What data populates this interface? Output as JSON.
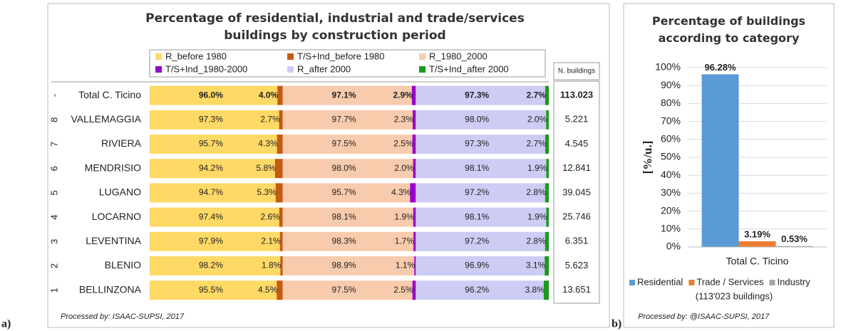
{
  "chart_data": [
    {
      "type": "stacked_bar",
      "orientation": "horizontal",
      "panel": "a)",
      "title": "Percentage of residential, industrial and trade/services buildings by construction period",
      "categories": [
        "Total C. Ticino",
        "VALLEMAGGIA",
        "RIVIERA",
        "MENDRISIO",
        "LUGANO",
        "LOCARNO",
        "LEVENTINA",
        "BLENIO",
        "BELLINZONA"
      ],
      "row_numbers": [
        "-",
        "8",
        "7",
        "6",
        "5",
        "4",
        "3",
        "2",
        "1"
      ],
      "series": [
        {
          "name": "R_before 1980",
          "color": "#ffd966",
          "values": [
            96.0,
            97.3,
            95.7,
            94.2,
            94.7,
            97.4,
            97.9,
            98.2,
            95.5
          ],
          "value_labels": [
            "96.0%",
            "97.3%",
            "95.7%",
            "94.2%",
            "94.7%",
            "97.4%",
            "97.9%",
            "98.2%",
            "95.5%"
          ]
        },
        {
          "name": "T/S+Ind_before 1980",
          "color": "#c55a11",
          "values": [
            4.0,
            2.7,
            4.3,
            5.8,
            5.3,
            2.6,
            2.1,
            1.8,
            4.5
          ],
          "value_labels": [
            "4.0%",
            "2.7%",
            "4.3%",
            "5.8%",
            "5.3%",
            "2.6%",
            "2.1%",
            "1.8%",
            "4.5%"
          ]
        },
        {
          "name": "R_1980_2000",
          "color": "#f8cbad",
          "values": [
            97.1,
            97.7,
            97.5,
            98.0,
            95.7,
            98.1,
            98.3,
            98.9,
            97.5
          ],
          "value_labels": [
            "97.1%",
            "97.7%",
            "97.5%",
            "98.0%",
            "95.7%",
            "98.1%",
            "98.3%",
            "98.9%",
            "97.5%"
          ]
        },
        {
          "name": "T/S+Ind_1980-2000",
          "color": "#9900cc",
          "values": [
            2.9,
            2.3,
            2.5,
            2.0,
            4.3,
            1.9,
            1.7,
            1.1,
            2.5
          ],
          "value_labels": [
            "2.9%",
            "2.3%",
            "2.5%",
            "2.0%",
            "4.3%",
            "1.9%",
            "1.7%",
            "1.1%",
            "2.5%"
          ]
        },
        {
          "name": "R_after 2000",
          "color": "#ccccf5",
          "values": [
            97.3,
            98.0,
            97.3,
            98.1,
            97.2,
            98.1,
            97.2,
            96.9,
            96.2
          ],
          "value_labels": [
            "97.3%",
            "98.0%",
            "97.3%",
            "98.1%",
            "97.2%",
            "98.1%",
            "97.2%",
            "96.9%",
            "96.2%"
          ]
        },
        {
          "name": "T/S+Ind_after 2000",
          "color": "#1a9a1a",
          "values": [
            2.7,
            2.0,
            2.7,
            1.9,
            2.8,
            1.9,
            2.8,
            3.1,
            3.8
          ],
          "value_labels": [
            "2.7%",
            "2.0%",
            "2.7%",
            "1.9%",
            "2.8%",
            "1.9%",
            "2.8%",
            "3.1%",
            "3.8%"
          ]
        }
      ],
      "n_buildings_header": "N. buildings",
      "n_buildings": [
        "113.023",
        "5.221",
        "4.545",
        "12.841",
        "39.045",
        "25.746",
        "6.351",
        "5.623",
        "13.651"
      ],
      "footnote": "Processed by: ISAAC-SUPSI, 2017"
    },
    {
      "type": "bar",
      "panel": "b)",
      "title": "Percentage of buildings according to category",
      "categories": [
        "Total C. Ticino"
      ],
      "series": [
        {
          "name": "Residential",
          "color": "#5b9bd5",
          "values": [
            96.28
          ],
          "value_labels": [
            "96.28%"
          ]
        },
        {
          "name": "Trade / Services",
          "color": "#ed7d31",
          "values": [
            3.19
          ],
          "value_labels": [
            "3.19%"
          ]
        },
        {
          "name": "Industry",
          "color": "#a5a5a5",
          "values": [
            0.53
          ],
          "value_labels": [
            "0.53%"
          ]
        }
      ],
      "ylabel": "[%/u.]",
      "ylim": [
        0,
        100
      ],
      "yticks": [
        {
          "value": 0,
          "label": "0%"
        },
        {
          "value": 10,
          "label": "10%"
        },
        {
          "value": 20,
          "label": "20%"
        },
        {
          "value": 30,
          "label": "30%"
        },
        {
          "value": 40,
          "label": "40%"
        },
        {
          "value": 50,
          "label": "50%"
        },
        {
          "value": 60,
          "label": "60%"
        },
        {
          "value": 70,
          "label": "70%"
        },
        {
          "value": 80,
          "label": "80%"
        },
        {
          "value": 90,
          "label": "90%"
        },
        {
          "value": 100,
          "label": "100%"
        }
      ],
      "grid": true,
      "legend_note": "(113'023 buildings)",
      "footnote": "Processed by: @ISAAC-SUPSI, 2017"
    }
  ]
}
